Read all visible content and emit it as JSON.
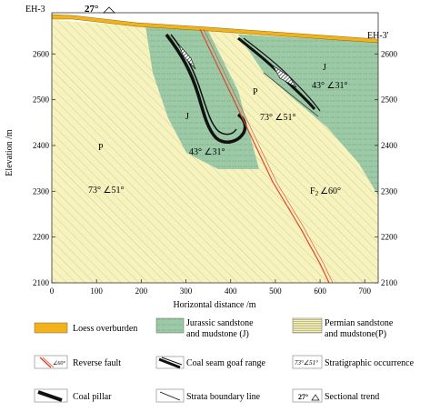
{
  "section": {
    "left_label": "EH-3",
    "right_label": "EH-3'",
    "trend_label": "27°",
    "x_axis_label": "Horizontal distance /m",
    "y_axis_label": "Elevation /m",
    "x_ticks": [
      "0",
      "100",
      "200",
      "300",
      "400",
      "500",
      "600",
      "700"
    ],
    "y_ticks": [
      "2100",
      "2200",
      "2300",
      "2400",
      "2500",
      "2600"
    ],
    "xlim": [
      0,
      730
    ],
    "ylim": [
      2100,
      2690
    ]
  },
  "annotations": {
    "j_upper_label": "J",
    "j_upper_occurrence": "43° ∠31°",
    "j_lower_label": "J",
    "j_lower_occurrence": "43° ∠31°",
    "p_left_label": "P",
    "p_left_occurrence": "73° ∠51°",
    "p_mid_label": "P",
    "p_mid_occurrence": "73° ∠51°",
    "fault_label": "F",
    "fault_subscript": "2",
    "fault_occurrence": "∠60°"
  },
  "legend": {
    "loess": "Loess overburden",
    "jurassic_line1": "Jurassic sandstone",
    "jurassic_line2": "and mudstone (J)",
    "permian_line1": "Permian sandstone",
    "permian_line2": "and mudstone(P)",
    "reverse_fault": "Reverse fault",
    "reverse_fault_symbol": "∠60°",
    "goaf": "Coal seam goaf range",
    "stratigraphic": "Stratigraphic occurrence",
    "stratigraphic_symbol": "73°∠51°",
    "coal_pillar": "Coal pillar",
    "strata_boundary": "Strata boundary line",
    "sectional_trend": "Sectional trend",
    "sectional_trend_symbol": "27°"
  },
  "colors": {
    "permian": "#f7f3be",
    "permian_hatch": "#c9c489",
    "jurassic": "#9ccaa6",
    "jurassic_hatch": "#6f9c7a",
    "loess": "#f3b21a",
    "fault": "#e0452a",
    "coal": "#111111"
  }
}
